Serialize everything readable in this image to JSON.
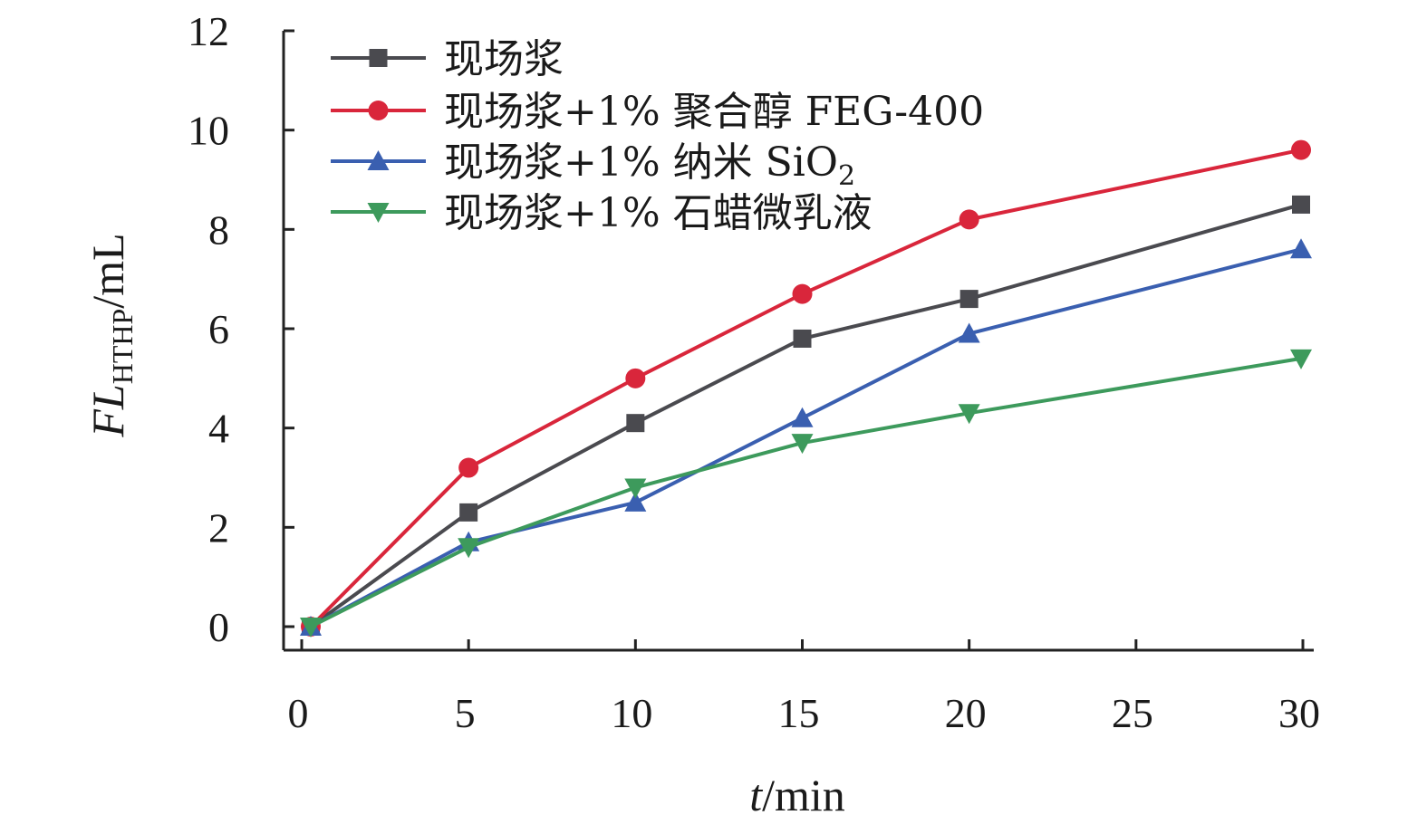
{
  "chart_data": {
    "type": "line",
    "x": [
      0,
      5,
      10,
      15,
      20,
      30
    ],
    "xlim": [
      0,
      30
    ],
    "ylim": [
      0,
      12
    ],
    "xticks": [
      "0",
      "5",
      "10",
      "15",
      "20",
      "25",
      "30"
    ],
    "yticks": [
      "0",
      "2",
      "4",
      "6",
      "8",
      "10",
      "12"
    ],
    "xlabel": {
      "italic": "t",
      "rest": "/min"
    },
    "ylabel": {
      "italic": "FL",
      "sub": "HTHP",
      "rest": "/mL"
    },
    "grid": false,
    "legend_position": "top-left",
    "series": [
      {
        "name": "现场浆",
        "color": "#4a4a4f",
        "marker": "square",
        "values": [
          0,
          2.3,
          4.1,
          5.8,
          6.6,
          8.5
        ]
      },
      {
        "name": "现场浆+1% 聚合醇 FEG-400",
        "color": "#d9263b",
        "marker": "circle",
        "values": [
          0,
          3.2,
          5.0,
          6.7,
          8.2,
          9.6
        ]
      },
      {
        "name": "现场浆+1% 纳米 SiO",
        "name_sub": "2",
        "color": "#3a5fb0",
        "marker": "triangle-up",
        "values": [
          0,
          1.7,
          2.5,
          4.2,
          5.9,
          7.6
        ]
      },
      {
        "name": "现场浆+1% 石蜡微乳液",
        "color": "#3d9a5c",
        "marker": "triangle-down",
        "values": [
          0,
          1.6,
          2.8,
          3.7,
          4.3,
          5.4
        ]
      }
    ]
  }
}
